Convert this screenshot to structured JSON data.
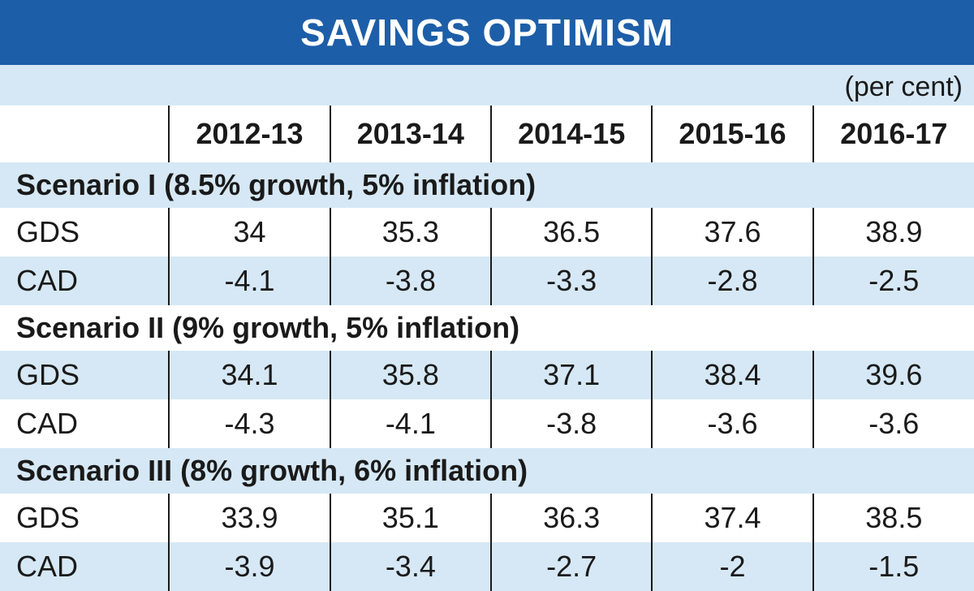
{
  "title": "SAVINGS OPTIMISM",
  "unit": "(per cent)",
  "colors": {
    "title_bar": "#1d5ea8",
    "band": "#d6e8f5",
    "white": "#ffffff"
  },
  "chart_data": {
    "type": "table",
    "title": "SAVINGS OPTIMISM",
    "unit": "(per cent)",
    "columns": [
      "2012-13",
      "2013-14",
      "2014-15",
      "2015-16",
      "2016-17"
    ],
    "scenarios": [
      {
        "label": "Scenario I (8.5% growth, 5% inflation)",
        "rows": [
          {
            "label": "GDS",
            "values": [
              "34",
              "35.3",
              "36.5",
              "37.6",
              "38.9"
            ]
          },
          {
            "label": "CAD",
            "values": [
              "-4.1",
              "-3.8",
              "-3.3",
              "-2.8",
              "-2.5"
            ]
          }
        ]
      },
      {
        "label": "Scenario II (9% growth, 5% inflation)",
        "rows": [
          {
            "label": "GDS",
            "values": [
              "34.1",
              "35.8",
              "37.1",
              "38.4",
              "39.6"
            ]
          },
          {
            "label": "CAD",
            "values": [
              "-4.3",
              "-4.1",
              "-3.8",
              "-3.6",
              "-3.6"
            ]
          }
        ]
      },
      {
        "label": "Scenario III (8% growth, 6% inflation)",
        "rows": [
          {
            "label": "GDS",
            "values": [
              "33.9",
              "35.1",
              "36.3",
              "37.4",
              "38.5"
            ]
          },
          {
            "label": "CAD",
            "values": [
              "-3.9",
              "-3.4",
              "-2.7",
              "-2",
              "-1.5"
            ]
          }
        ]
      }
    ]
  }
}
